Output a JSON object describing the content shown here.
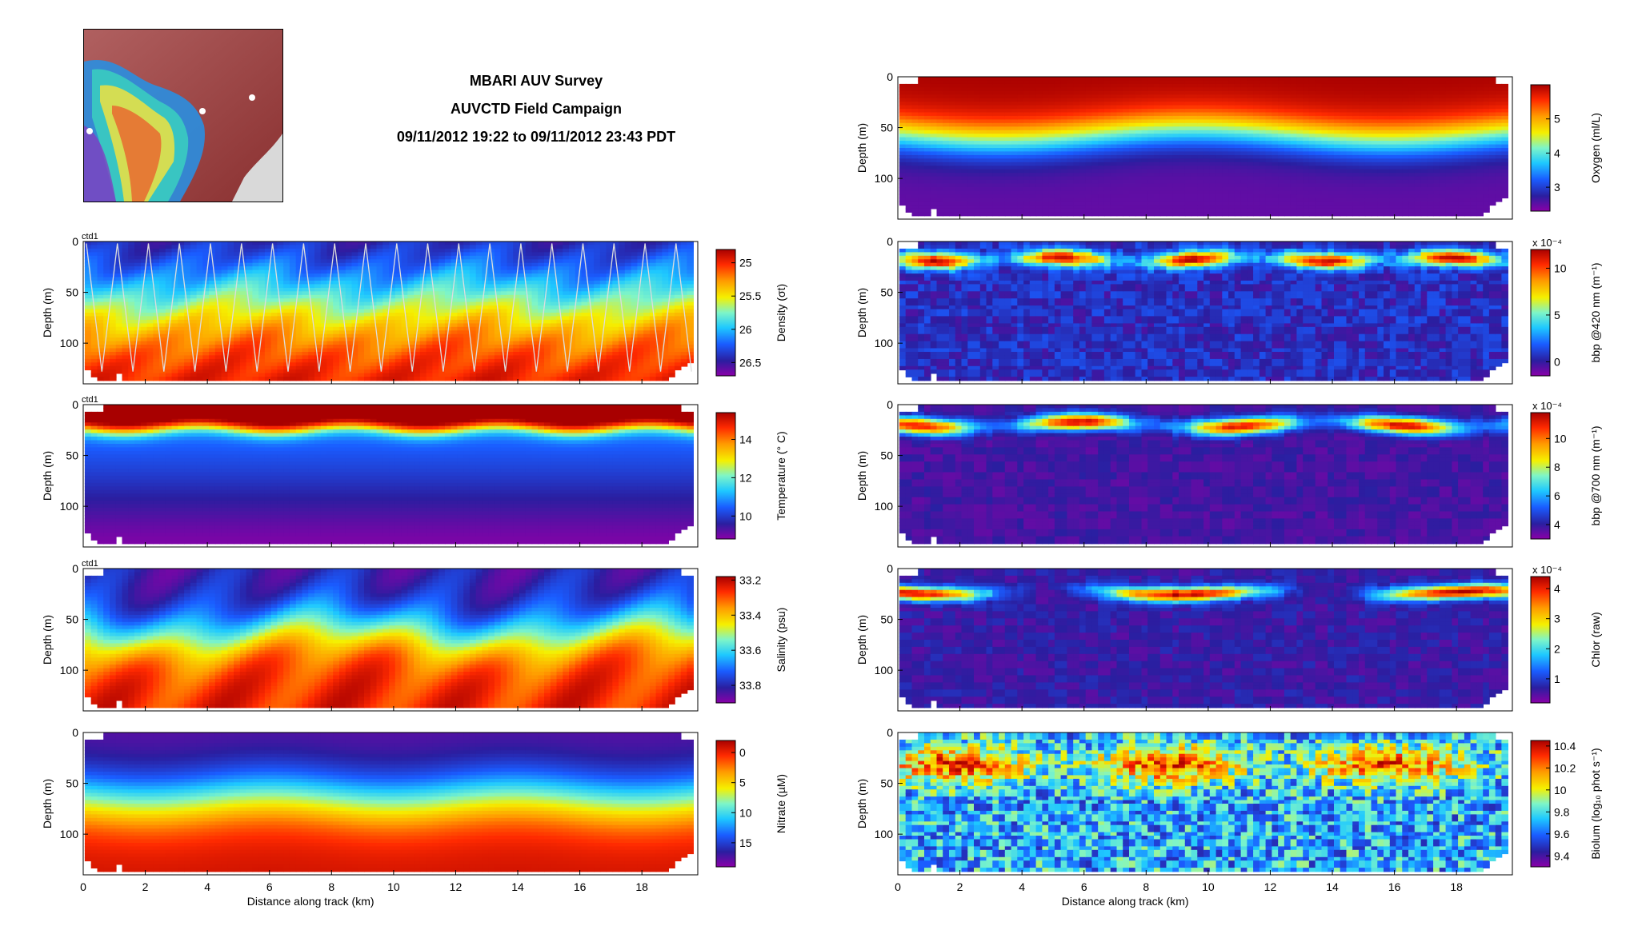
{
  "title": {
    "line1": "MBARI AUV Survey",
    "line2": "AUVCTD Field Campaign",
    "line3": "09/11/2012 19:22 to 09/11/2012 23:43 PDT"
  },
  "map_inset": {
    "icon": "bathymetry-map-icon"
  },
  "colors": {
    "colormap": [
      "#8a00a8",
      "#2a1ea0",
      "#1a5cff",
      "#1ec8ff",
      "#7ef5c8",
      "#f5f000",
      "#ff9c00",
      "#ff2a00",
      "#a80000"
    ],
    "track": "#dddddd"
  },
  "chart_data": [
    {
      "type": "heatmap",
      "panel": "density",
      "column": "left",
      "row": 0,
      "annotation": "ctd1",
      "ylabel": "Depth (m)",
      "ylim": [
        0,
        140
      ],
      "yticks": [
        "0",
        "50",
        "100"
      ],
      "xlim": [
        0,
        19.8
      ],
      "xticks": [
        "0",
        "2",
        "4",
        "6",
        "8",
        "10",
        "12",
        "14",
        "16",
        "18"
      ],
      "xlabel": "",
      "colorbar": {
        "label": "Density (σt)",
        "ticks": [
          "25",
          "25.5",
          "26",
          "26.5"
        ],
        "tick_values": [
          25,
          25.5,
          26,
          26.5
        ],
        "range": [
          24.8,
          26.7
        ],
        "reversed": true
      },
      "track_overlay": true
    },
    {
      "type": "heatmap",
      "panel": "temperature",
      "column": "left",
      "row": 1,
      "annotation": "ctd1",
      "ylabel": "Depth (m)",
      "ylim": [
        0,
        140
      ],
      "yticks": [
        "0",
        "50",
        "100"
      ],
      "xlim": [
        0,
        19.8
      ],
      "xticks": [
        "0",
        "2",
        "4",
        "6",
        "8",
        "10",
        "12",
        "14",
        "16",
        "18"
      ],
      "xlabel": "",
      "colorbar": {
        "label": "Temperature (° C)",
        "ticks": [
          "10",
          "12",
          "14"
        ],
        "tick_values": [
          10,
          12,
          14
        ],
        "range": [
          8.8,
          15.4
        ],
        "reversed": false
      }
    },
    {
      "type": "heatmap",
      "panel": "salinity",
      "column": "left",
      "row": 2,
      "annotation": "ctd1",
      "ylabel": "Depth (m)",
      "ylim": [
        0,
        140
      ],
      "yticks": [
        "0",
        "50",
        "100"
      ],
      "xlim": [
        0,
        19.8
      ],
      "xticks": [
        "0",
        "2",
        "4",
        "6",
        "8",
        "10",
        "12",
        "14",
        "16",
        "18"
      ],
      "xlabel": "",
      "colorbar": {
        "label": "Salinity (psu)",
        "ticks": [
          "33.2",
          "33.4",
          "33.6",
          "33.8"
        ],
        "tick_values": [
          33.2,
          33.4,
          33.6,
          33.8
        ],
        "range": [
          33.18,
          33.9
        ],
        "reversed": true
      }
    },
    {
      "type": "heatmap",
      "panel": "nitrate",
      "column": "left",
      "row": 3,
      "ylabel": "Depth (m)",
      "ylim": [
        0,
        140
      ],
      "yticks": [
        "0",
        "50",
        "100"
      ],
      "xlim": [
        0,
        19.8
      ],
      "xticks": [
        "0",
        "2",
        "4",
        "6",
        "8",
        "10",
        "12",
        "14",
        "16",
        "18"
      ],
      "xlabel": "Distance along track (km)",
      "colorbar": {
        "label": "Nitrate (µM)",
        "ticks": [
          "0",
          "5",
          "10",
          "15"
        ],
        "tick_values": [
          0,
          5,
          10,
          15
        ],
        "range": [
          -2,
          19
        ],
        "reversed": true
      }
    },
    {
      "type": "heatmap",
      "panel": "oxygen",
      "column": "right",
      "row": -1,
      "ylabel": "Depth (m)",
      "ylim": [
        0,
        140
      ],
      "yticks": [
        "0",
        "50",
        "100"
      ],
      "xlim": [
        0,
        19.8
      ],
      "xticks": [
        "0",
        "2",
        "4",
        "6",
        "8",
        "10",
        "12",
        "14",
        "16",
        "18"
      ],
      "xlabel": "",
      "colorbar": {
        "label": "Oxygen (ml/L)",
        "ticks": [
          "3",
          "4",
          "5"
        ],
        "tick_values": [
          3,
          4,
          5
        ],
        "range": [
          2.3,
          6.0
        ],
        "reversed": false
      }
    },
    {
      "type": "heatmap",
      "panel": "bbp420",
      "column": "right",
      "row": 0,
      "ylabel": "Depth (m)",
      "ylim": [
        0,
        140
      ],
      "yticks": [
        "0",
        "50",
        "100"
      ],
      "xlim": [
        0,
        19.8
      ],
      "xticks": [
        "0",
        "2",
        "4",
        "6",
        "8",
        "10",
        "12",
        "14",
        "16",
        "18"
      ],
      "xlabel": "",
      "colorbar": {
        "label": "bbp @420 nm (m⁻¹)",
        "exponent": "x 10⁻⁴",
        "ticks": [
          "0",
          "5",
          "10"
        ],
        "tick_values": [
          0,
          5,
          10
        ],
        "range": [
          -1.5,
          12
        ],
        "reversed": false
      }
    },
    {
      "type": "heatmap",
      "panel": "bbp700",
      "column": "right",
      "row": 1,
      "ylabel": "Depth (m)",
      "ylim": [
        0,
        140
      ],
      "yticks": [
        "0",
        "50",
        "100"
      ],
      "xlim": [
        0,
        19.8
      ],
      "xticks": [
        "0",
        "2",
        "4",
        "6",
        "8",
        "10",
        "12",
        "14",
        "16",
        "18"
      ],
      "xlabel": "",
      "colorbar": {
        "label": "bbp @700 nm (m⁻¹)",
        "exponent": "x 10⁻⁴",
        "ticks": [
          "4",
          "6",
          "8",
          "10"
        ],
        "tick_values": [
          4,
          6,
          8,
          10
        ],
        "range": [
          3,
          11.8
        ],
        "reversed": false
      }
    },
    {
      "type": "heatmap",
      "panel": "chlor",
      "column": "right",
      "row": 2,
      "ylabel": "Depth (m)",
      "ylim": [
        0,
        140
      ],
      "yticks": [
        "0",
        "50",
        "100"
      ],
      "xlim": [
        0,
        19.8
      ],
      "xticks": [
        "0",
        "2",
        "4",
        "6",
        "8",
        "10",
        "12",
        "14",
        "16",
        "18"
      ],
      "xlabel": "",
      "colorbar": {
        "label": "Chlor (raw)",
        "exponent": "x 10⁻⁴",
        "ticks": [
          "1",
          "2",
          "3",
          "4"
        ],
        "tick_values": [
          1,
          2,
          3,
          4
        ],
        "range": [
          0.2,
          4.4
        ],
        "reversed": false
      }
    },
    {
      "type": "heatmap",
      "panel": "biolum",
      "column": "right",
      "row": 3,
      "ylabel": "Depth (m)",
      "ylim": [
        0,
        140
      ],
      "yticks": [
        "0",
        "50",
        "100"
      ],
      "xlim": [
        0,
        19.8
      ],
      "xticks": [
        "0",
        "2",
        "4",
        "6",
        "8",
        "10",
        "12",
        "14",
        "16",
        "18"
      ],
      "xlabel": "Distance along track (km)",
      "colorbar": {
        "label": "Biolum (log₁₀ phot s⁻¹)",
        "ticks": [
          "9.4",
          "9.6",
          "9.8",
          "10",
          "10.2",
          "10.4"
        ],
        "tick_values": [
          9.4,
          9.6,
          9.8,
          10,
          10.2,
          10.4
        ],
        "range": [
          9.3,
          10.45
        ],
        "reversed": false
      }
    }
  ]
}
